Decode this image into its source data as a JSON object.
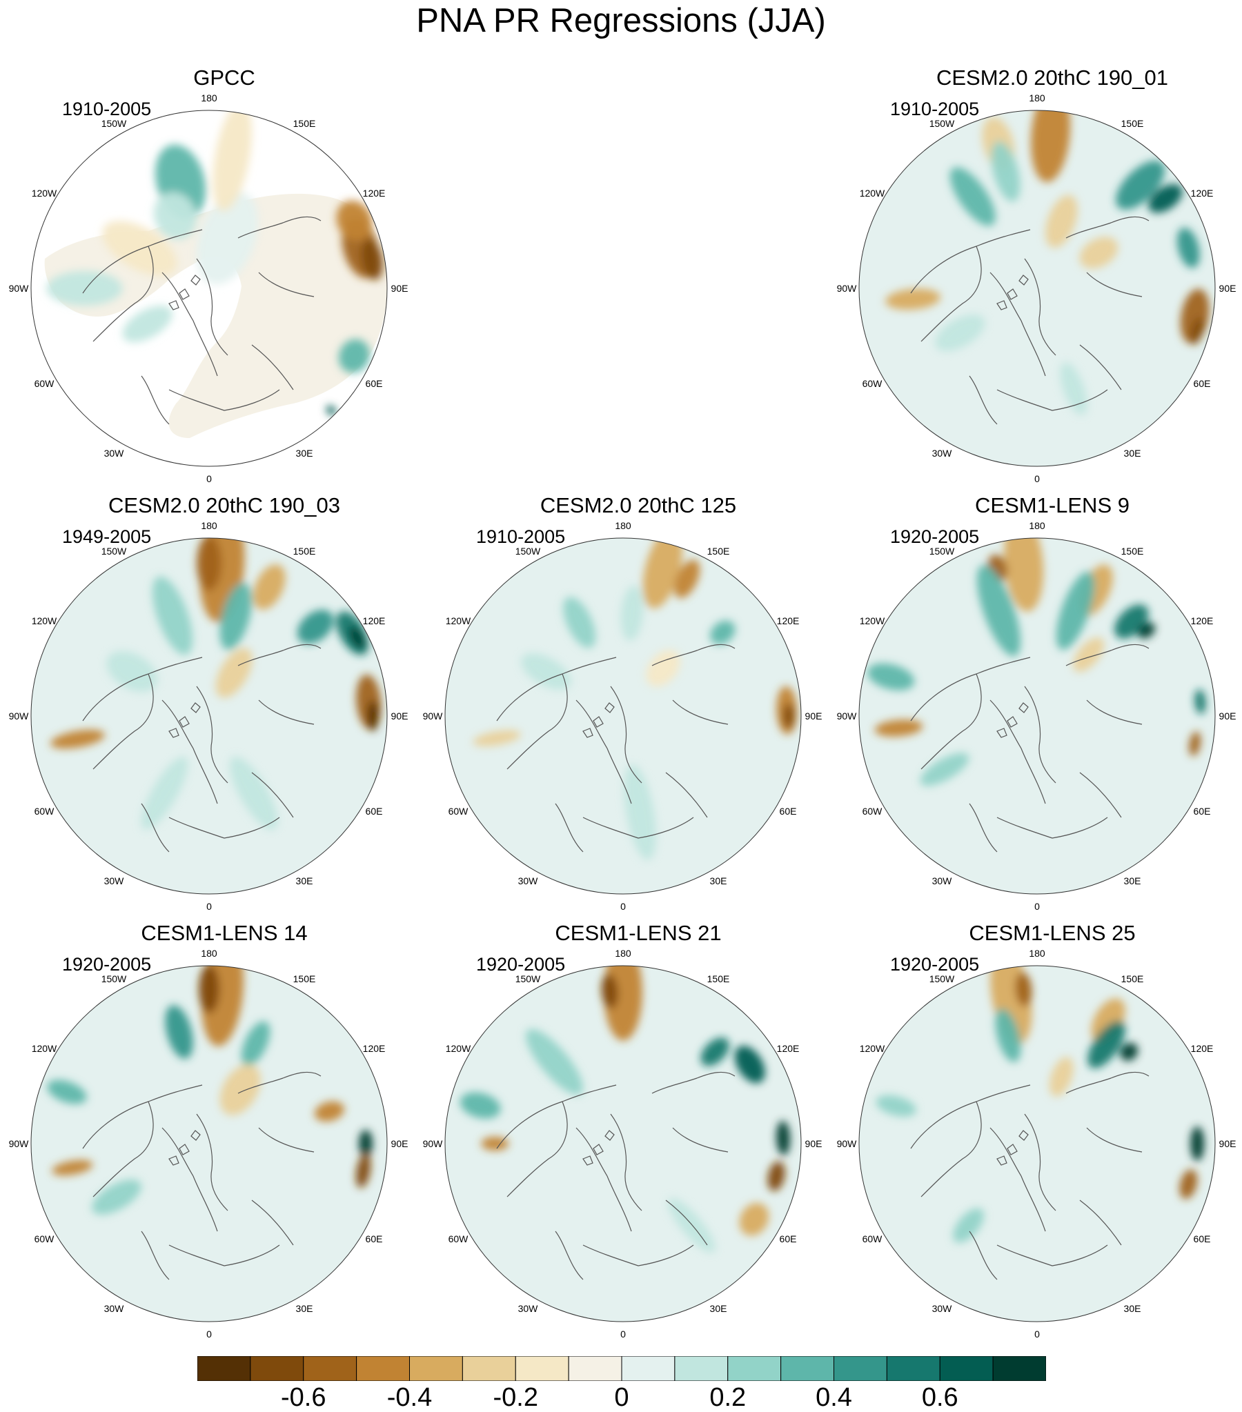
{
  "title": "PNA PR Regressions (JJA)",
  "panels": [
    {
      "title": "GPCC",
      "period": "1910-2005",
      "style": "obs",
      "empty": false
    },
    {
      "title": "",
      "period": "",
      "style": "none",
      "empty": true
    },
    {
      "title": "CESM2.0 20thC 190_01",
      "period": "1910-2005",
      "style": "a",
      "empty": false
    },
    {
      "title": "CESM2.0 20thC 190_03",
      "period": "1949-2005",
      "style": "b",
      "empty": false
    },
    {
      "title": "CESM2.0 20thC 125",
      "period": "1910-2005",
      "style": "c",
      "empty": false
    },
    {
      "title": "CESM1-LENS 9",
      "period": "1920-2005",
      "style": "d",
      "empty": false
    },
    {
      "title": "CESM1-LENS 14",
      "period": "1920-2005",
      "style": "e",
      "empty": false
    },
    {
      "title": "CESM1-LENS 21",
      "period": "1920-2005",
      "style": "f",
      "empty": false
    },
    {
      "title": "CESM1-LENS 25",
      "period": "1920-2005",
      "style": "g",
      "empty": false
    }
  ],
  "longitude_labels": [
    "180",
    "150E",
    "120E",
    "90E",
    "60E",
    "30E",
    "0",
    "30W",
    "60W",
    "90W",
    "120W",
    "150W"
  ],
  "colorbar": {
    "colors": [
      "#543005",
      "#7f4a0c",
      "#a0631a",
      "#c18333",
      "#d8ab5f",
      "#e9d09a",
      "#f5e8c6",
      "#f5f1e6",
      "#e4f1ef",
      "#c1e6df",
      "#92d3c8",
      "#5eb6aa",
      "#34968b",
      "#16786e",
      "#035d52",
      "#003c30"
    ],
    "tick_values": [
      -0.6,
      -0.4,
      -0.2,
      0,
      0.2,
      0.4,
      0.6
    ],
    "tick_labels": [
      "-0.6",
      "-0.4",
      "-0.2",
      "0",
      "0.2",
      "0.4",
      "0.6"
    ]
  }
}
